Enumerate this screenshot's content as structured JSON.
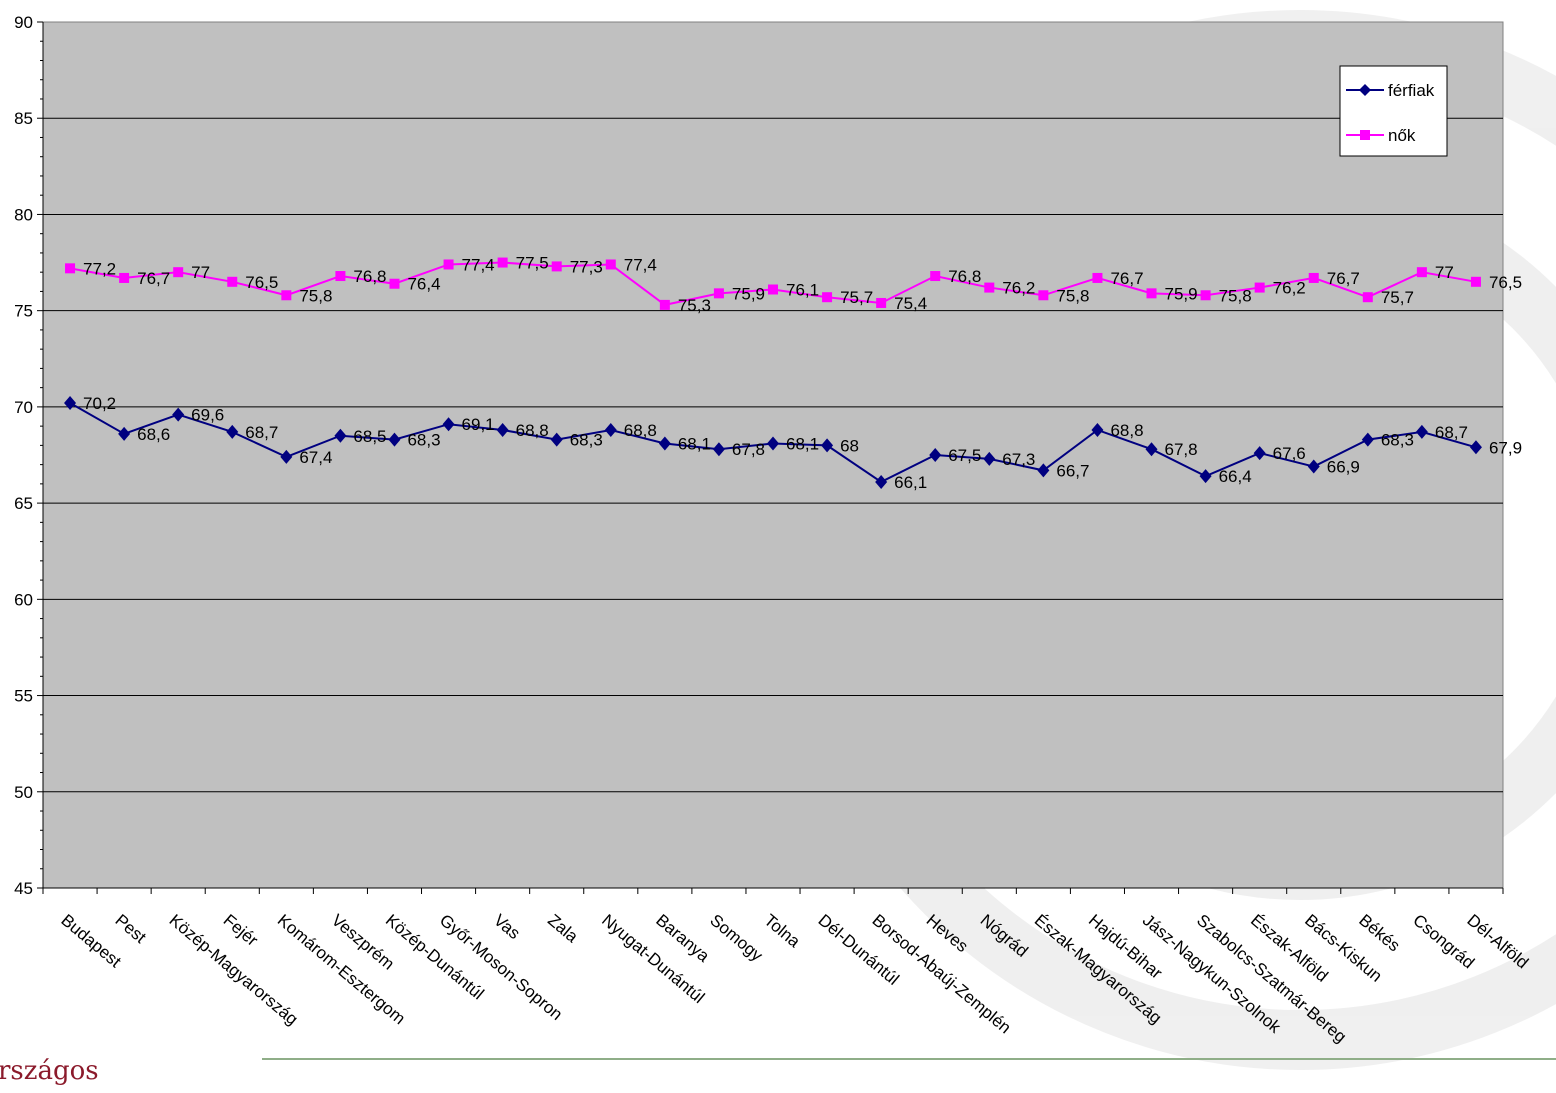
{
  "footer": {
    "text": "rszágos"
  },
  "chart_data": {
    "type": "line",
    "categories": [
      "Budapest",
      "Pest",
      "Közép-Magyarország",
      "Fejér",
      "Komárom-Esztergom",
      "Veszprém",
      "Közép-Dunántúl",
      "Győr-Moson-Sopron",
      "Vas",
      "Zala",
      "Nyugat-Dunántúl",
      "Baranya",
      "Somogy",
      "Tolna",
      "Dél-Dunántúl",
      "Borsod-Abaúj-Zemplén",
      "Heves",
      "Nógrád",
      "Észak-Magyarország",
      "Hajdú-Bihar",
      "Jász-Nagykun-Szolnok",
      "Szabolcs-Szatmár-Bereg",
      "Észak-Alföld",
      "Bács-Kiskun",
      "Békés",
      "Csongrád",
      "Dél-Alföld"
    ],
    "series": [
      {
        "name": "férfiak",
        "color": "#000080",
        "marker": "diamond",
        "values": [
          70.2,
          68.6,
          69.6,
          68.7,
          67.4,
          68.5,
          68.3,
          69.1,
          68.8,
          68.3,
          68.8,
          68.1,
          67.8,
          68.1,
          68,
          66.1,
          67.5,
          67.3,
          66.7,
          68.8,
          67.8,
          66.4,
          67.6,
          66.9,
          68.3,
          68.7,
          67.9
        ],
        "labels": [
          "70,2",
          "68,6",
          "69,6",
          "68,7",
          "67,4",
          "68,5",
          "68,3",
          "69,1",
          "68,8",
          "68,3",
          "68,8",
          "68,1",
          "67,8",
          "68,1",
          "68",
          "66,1",
          "67,5",
          "67,3",
          "66,7",
          "68,8",
          "67,8",
          "66,4",
          "67,6",
          "66,9",
          "68,3",
          "68,7",
          "67,9"
        ]
      },
      {
        "name": "nők",
        "color": "#ff00ff",
        "marker": "square",
        "values": [
          77.2,
          76.7,
          77,
          76.5,
          75.8,
          76.8,
          76.4,
          77.4,
          77.5,
          77.3,
          77.4,
          75.3,
          75.9,
          76.1,
          75.7,
          75.4,
          76.8,
          76.2,
          75.8,
          76.7,
          75.9,
          75.8,
          76.2,
          76.7,
          75.7,
          77,
          76.5
        ],
        "labels": [
          "77,2",
          "76,7",
          "77",
          "76,5",
          "75,8",
          "76,8",
          "76,4",
          "77,4",
          "77,5",
          "77,3",
          "77,4",
          "75,3",
          "75,9",
          "76,1",
          "75,7",
          "75,4",
          "76,8",
          "76,2",
          "75,8",
          "76,7",
          "75,9",
          "75,8",
          "76,2",
          "76,7",
          "75,7",
          "77",
          "76,5"
        ]
      }
    ],
    "ylim": [
      45,
      90
    ],
    "yticks": [
      45,
      50,
      55,
      60,
      65,
      70,
      75,
      80,
      85,
      90
    ],
    "plot_background": "#c0c0c0",
    "grid": true,
    "legend": "top-right",
    "title": "",
    "xlabel": "",
    "ylabel": ""
  }
}
